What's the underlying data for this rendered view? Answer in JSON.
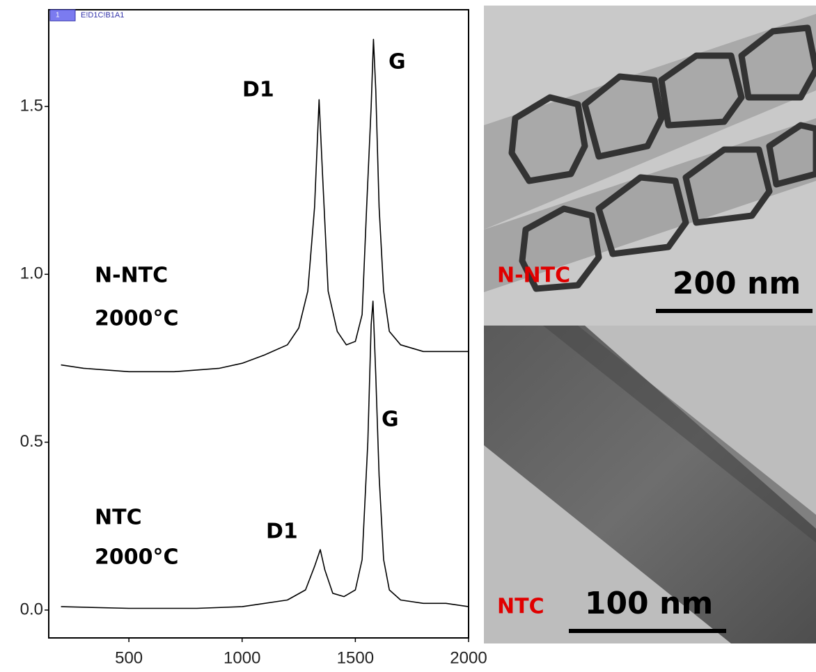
{
  "chart_data": {
    "type": "line",
    "xlim": [
      146,
      2000
    ],
    "ylim": [
      -0.083,
      1.788
    ],
    "xticks": [
      500,
      1000,
      1500,
      2000
    ],
    "yticks": [
      {
        "value": 0,
        "label": "0.0"
      },
      0.5,
      {
        "value": 1,
        "label": "1.0"
      },
      1.5
    ],
    "legend_box": {
      "index": "1",
      "label": "E!D1C!B1A1"
    },
    "annotations": [
      "D1",
      "G",
      "D1",
      "G"
    ],
    "series": [
      {
        "name": "N-NTC",
        "temperature": "2000°C",
        "color": "#000000",
        "x": [
          200,
          300,
          500,
          700,
          900,
          1000,
          1100,
          1200,
          1250,
          1290,
          1320,
          1340,
          1355,
          1380,
          1420,
          1460,
          1500,
          1530,
          1550,
          1570,
          1580,
          1590,
          1605,
          1625,
          1650,
          1700,
          1800,
          1900,
          2000
        ],
        "values": [
          0.73,
          0.72,
          0.71,
          0.71,
          0.72,
          0.735,
          0.76,
          0.79,
          0.84,
          0.95,
          1.2,
          1.52,
          1.3,
          0.95,
          0.83,
          0.79,
          0.8,
          0.88,
          1.2,
          1.5,
          1.7,
          1.55,
          1.2,
          0.95,
          0.83,
          0.79,
          0.77,
          0.77,
          0.77
        ]
      },
      {
        "name": "NTC",
        "temperature": "2000°C",
        "color": "#000000",
        "x": [
          200,
          500,
          800,
          1000,
          1100,
          1200,
          1280,
          1320,
          1345,
          1365,
          1400,
          1450,
          1500,
          1530,
          1555,
          1570,
          1578,
          1590,
          1605,
          1625,
          1650,
          1700,
          1800,
          1900,
          2000
        ],
        "values": [
          0.01,
          0.005,
          0.005,
          0.01,
          0.02,
          0.03,
          0.06,
          0.13,
          0.18,
          0.12,
          0.05,
          0.04,
          0.06,
          0.15,
          0.5,
          0.85,
          0.92,
          0.7,
          0.4,
          0.15,
          0.06,
          0.03,
          0.02,
          0.02,
          0.01
        ]
      }
    ]
  },
  "images": [
    {
      "label": "N-NTC",
      "scale_bar": "200 nm"
    },
    {
      "label": "NTC",
      "scale_bar": "100 nm"
    }
  ]
}
